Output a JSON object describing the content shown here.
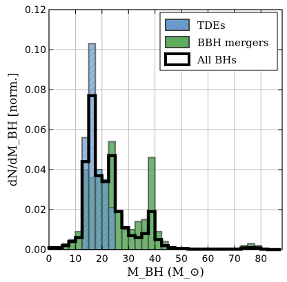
{
  "chart_data": {
    "type": "bar",
    "subtype": "step-histogram",
    "xlabel": "M_BH (M_⊙)",
    "ylabel": "dN/dM_BH [norm.]",
    "xlim": [
      0,
      88
    ],
    "ylim": [
      0,
      0.12
    ],
    "xticks": [
      0,
      10,
      20,
      30,
      40,
      50,
      60,
      70,
      80
    ],
    "yticks": [
      0.0,
      0.02,
      0.04,
      0.06,
      0.08,
      0.1,
      0.12
    ],
    "xtick_labels": [
      "0",
      "10",
      "20",
      "30",
      "40",
      "50",
      "60",
      "70",
      "80"
    ],
    "ytick_labels": [
      "0.00",
      "0.02",
      "0.04",
      "0.06",
      "0.08",
      "0.10",
      "0.12"
    ],
    "grid": true,
    "legend_position": "top-right",
    "bin_edges": [
      0,
      2.5,
      5,
      7.5,
      10,
      12.5,
      15,
      17.5,
      20,
      22.5,
      25,
      27.5,
      30,
      32.5,
      35,
      37.5,
      40,
      42.5,
      45,
      47.5,
      50,
      52.5,
      55,
      57.5,
      60,
      62.5,
      65,
      67.5,
      70,
      72.5,
      75,
      77.5,
      80,
      82.5,
      85,
      87.5
    ],
    "series": [
      {
        "name": "TDEs",
        "color": "#6b9ecf",
        "style": "filled-hatched",
        "values": [
          0,
          0,
          0,
          0,
          0,
          0.056,
          0.103,
          0.04,
          0.035,
          0.021,
          0,
          0,
          0,
          0,
          0,
          0,
          0,
          0,
          0,
          0,
          0,
          0,
          0,
          0,
          0,
          0,
          0,
          0,
          0,
          0,
          0,
          0,
          0,
          0,
          0
        ]
      },
      {
        "name": "BBH mergers",
        "color": "#5fac5f",
        "style": "filled",
        "values": [
          0.001,
          0.001,
          0.003,
          0.005,
          0.009,
          0.04,
          0.036,
          0.036,
          0.034,
          0.054,
          0.019,
          0.01,
          0.01,
          0.014,
          0.015,
          0.046,
          0.009,
          0.004,
          0.001,
          0.001,
          0.001,
          0.0005,
          0.0005,
          0.0005,
          0.0005,
          0.0005,
          0.0005,
          0.0005,
          0.0005,
          0.002,
          0.003,
          0.002,
          0.0005,
          0,
          0
        ]
      },
      {
        "name": "All BHs",
        "color": "#000000",
        "style": "outline",
        "values": [
          0.001,
          0.001,
          0.002,
          0.004,
          0.006,
          0.044,
          0.077,
          0.037,
          0.034,
          0.047,
          0.019,
          0.011,
          0.007,
          0.006,
          0.008,
          0.019,
          0.005,
          0.002,
          0.001,
          0.0005,
          0.0005,
          0.0002,
          0.0002,
          0.0002,
          0.0002,
          0.0002,
          0.0002,
          0.0002,
          0.0002,
          0.0008,
          0.001,
          0.0008,
          0.0002,
          0,
          0
        ]
      }
    ]
  }
}
